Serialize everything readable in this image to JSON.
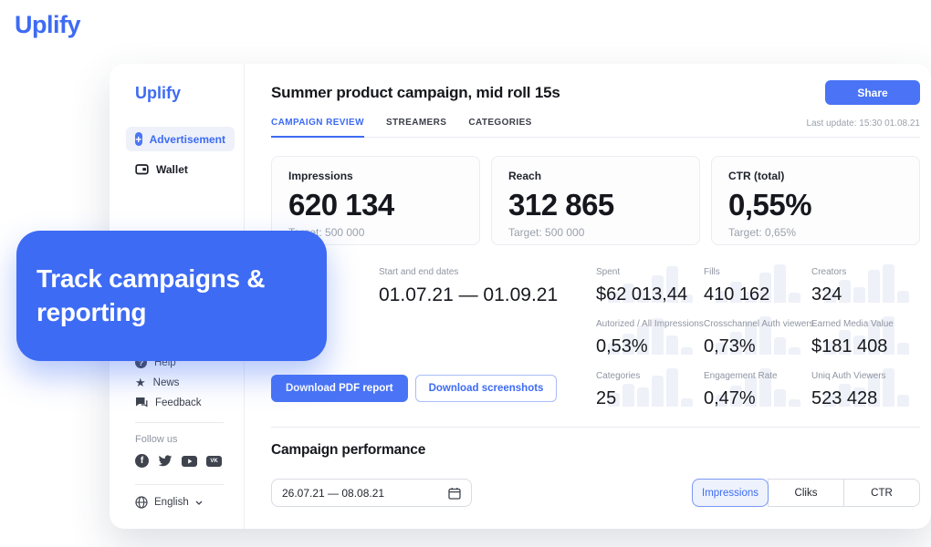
{
  "brand": "Uplify",
  "overlay": {
    "text": "Track campaigns & reporting"
  },
  "sidebar": {
    "logo": "Uplify",
    "nav": [
      {
        "label": "Advertisement"
      },
      {
        "label": "Wallet"
      }
    ],
    "support": [
      {
        "label": "Help"
      },
      {
        "label": "News"
      },
      {
        "label": "Feedback"
      }
    ],
    "follow_label": "Follow us",
    "social": [
      "facebook",
      "twitter",
      "youtube",
      "vk"
    ],
    "language": "English"
  },
  "header": {
    "title": "Summer product campaign, mid roll 15s",
    "share_label": "Share",
    "last_update": "Last update: 15:30 01.08.21"
  },
  "tabs": [
    {
      "label": "CAMPAIGN REVIEW"
    },
    {
      "label": "STREAMERS"
    },
    {
      "label": "CATEGORIES"
    }
  ],
  "stat_cards": [
    {
      "label": "Impressions",
      "value": "620 134",
      "target": "Target: 500 000"
    },
    {
      "label": "Reach",
      "value": "312 865",
      "target": "Target: 500 000"
    },
    {
      "label": "CTR (total)",
      "value": "0,55%",
      "target": "Target: 0,65%"
    }
  ],
  "dates": {
    "label": "Start and end dates",
    "value": "01.07.21 — 01.09.21"
  },
  "stats": {
    "rows": [
      [
        {
          "label": "Spent",
          "value": "$62 013,44",
          "spark": [
            0.28,
            0.5,
            0.33,
            0.72,
            0.95,
            0.22
          ]
        },
        {
          "label": "Fills",
          "value": "410 162",
          "spark": [
            0.3,
            0.55,
            0.28,
            0.78,
            1.0,
            0.25
          ]
        },
        {
          "label": "Creators",
          "value": "324",
          "spark": [
            0.35,
            0.6,
            0.4,
            0.85,
            1.0,
            0.3
          ]
        }
      ],
      [
        {
          "label": "Autorized / All Impressions",
          "value": "0,53%",
          "spark": [
            0.3,
            0.55,
            0.75,
            0.95,
            0.5,
            0.2
          ]
        },
        {
          "label": "Crosschannel Auth viewers",
          "value": "0,73%",
          "spark": [
            0.3,
            0.6,
            0.85,
            1.0,
            0.45,
            0.2
          ]
        },
        {
          "label": "Earned Media Value",
          "value": "$181 408",
          "spark": [
            0.35,
            0.65,
            0.5,
            0.9,
            1.0,
            0.3
          ]
        }
      ],
      [
        {
          "label": "Categories",
          "value": "25",
          "spark": [
            0.35,
            0.6,
            0.5,
            0.8,
            1.0,
            0.22
          ]
        },
        {
          "label": "Engagement Rate",
          "value": "0,47%",
          "spark": [
            0.3,
            0.55,
            0.8,
            1.0,
            0.45,
            0.2
          ]
        },
        {
          "label": "Uniq Auth Viewers",
          "value": "523 428",
          "spark": [
            0.35,
            0.6,
            0.5,
            0.85,
            1.0,
            0.3
          ]
        }
      ]
    ]
  },
  "actions": {
    "pdf_label": "Download PDF report",
    "screenshots_label": "Download screenshots"
  },
  "performance": {
    "title": "Campaign performance",
    "date_range": "26.07.21 — 08.08.21",
    "toggles": [
      {
        "label": "Impressions"
      },
      {
        "label": "Cliks"
      },
      {
        "label": "CTR"
      }
    ]
  },
  "colors": {
    "primary": "#3D6BF4",
    "spark_bar": "#EEF1F8",
    "active_tab": "#3D6BF4"
  }
}
